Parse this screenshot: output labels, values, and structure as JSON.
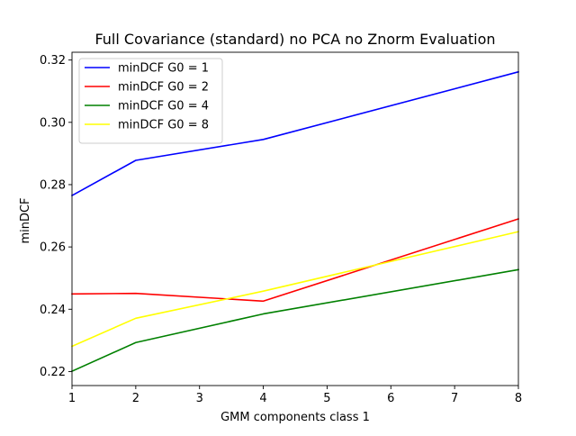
{
  "chart_data": {
    "type": "line",
    "title": "Full Covariance (standard) no PCA no Znorm Evaluation",
    "xlabel": "GMM components class 1",
    "ylabel": "minDCF",
    "x": [
      1,
      2,
      4,
      8
    ],
    "xlim": [
      1,
      8
    ],
    "ylim": [
      0.2155,
      0.3225
    ],
    "xticks": [
      1,
      2,
      3,
      4,
      5,
      6,
      7,
      8
    ],
    "yticks": [
      0.22,
      0.24,
      0.26,
      0.28,
      0.3,
      0.32
    ],
    "xtick_labels": [
      "1",
      "2",
      "3",
      "4",
      "5",
      "6",
      "7",
      "8"
    ],
    "ytick_labels": [
      "0.22",
      "0.24",
      "0.26",
      "0.28",
      "0.30",
      "0.32"
    ],
    "grid": false,
    "legend_position": "top-left",
    "series": [
      {
        "name": "minDCF G0 = 1",
        "color": "#0000ff",
        "values": [
          0.2765,
          0.2878,
          0.2945,
          0.3162
        ]
      },
      {
        "name": "minDCF G0 = 2",
        "color": "#ff0000",
        "values": [
          0.2449,
          0.2451,
          0.2426,
          0.269
        ]
      },
      {
        "name": "minDCF G0 = 4",
        "color": "#008000",
        "values": [
          0.2201,
          0.2293,
          0.2385,
          0.2527
        ]
      },
      {
        "name": "minDCF G0 = 8",
        "color": "#ffff00",
        "values": [
          0.2281,
          0.2371,
          0.2458,
          0.2649
        ]
      }
    ]
  }
}
